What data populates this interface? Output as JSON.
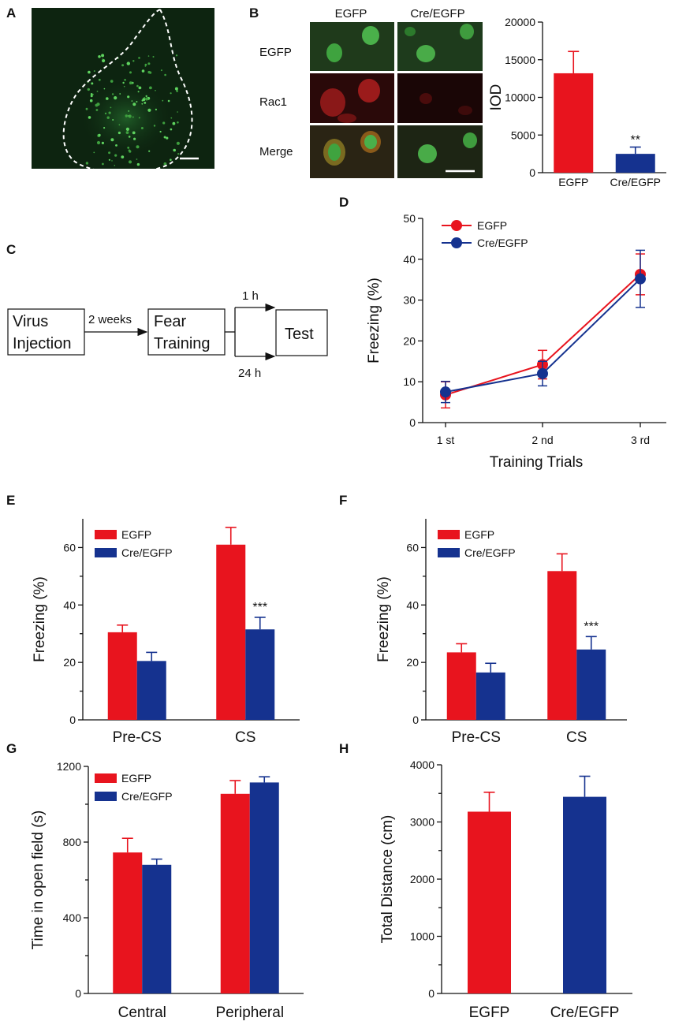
{
  "panel_letters": {
    "A": "A",
    "B": "B",
    "C": "C",
    "D": "D",
    "E": "E",
    "F": "F",
    "G": "G",
    "H": "H"
  },
  "colors": {
    "egfp": "#e8141e",
    "cre": "#15328f",
    "green_bg": "#0d2410"
  },
  "panel_b_micrographs": {
    "columns": [
      "EGFP",
      "Cre/EGFP"
    ],
    "rows": [
      "EGFP",
      "Rac1",
      "Merge"
    ]
  },
  "flowchart": {
    "box1": [
      "Virus",
      "Injection"
    ],
    "arrow1": "2 weeks",
    "box2": [
      "Fear",
      "Training"
    ],
    "branch_top": "1 h",
    "branch_bottom": "24 h",
    "box3": "Test"
  },
  "chart_data": [
    {
      "panel": "B",
      "type": "bar",
      "categories": [
        "EGFP",
        "Cre/EGFP"
      ],
      "values": [
        13200,
        2500
      ],
      "errors": [
        2900,
        900
      ],
      "colors": [
        "#e8141e",
        "#15328f"
      ],
      "ylabel": "IOD",
      "ylim": [
        0,
        20000
      ],
      "yticks": [
        0,
        5000,
        10000,
        15000,
        20000
      ],
      "significance": [
        {
          "category_index": 1,
          "text": "**"
        }
      ]
    },
    {
      "panel": "D",
      "type": "line",
      "x": [
        "1 st",
        "2 nd",
        "3 rd"
      ],
      "series": [
        {
          "name": "EGFP",
          "values": [
            6.8,
            14.2,
            36.3
          ],
          "errors": [
            3.2,
            3.5,
            5.0
          ],
          "color": "#e8141e"
        },
        {
          "name": "Cre/EGFP",
          "values": [
            7.5,
            12.0,
            35.2
          ],
          "errors": [
            2.6,
            3.0,
            7.0
          ],
          "color": "#15328f"
        }
      ],
      "xlabel": "Training Trials",
      "ylabel": "Freezing (%)",
      "ylim": [
        0,
        50
      ],
      "yticks": [
        0,
        10,
        20,
        30,
        40,
        50
      ]
    },
    {
      "panel": "E",
      "type": "bar",
      "categories": [
        "Pre-CS",
        "CS"
      ],
      "series": [
        {
          "name": "EGFP",
          "values": [
            30.5,
            61.0
          ],
          "errors": [
            2.5,
            6.0
          ],
          "color": "#e8141e"
        },
        {
          "name": "Cre/EGFP",
          "values": [
            20.5,
            31.5
          ],
          "errors": [
            3.0,
            4.2
          ],
          "color": "#15328f"
        }
      ],
      "ylabel": "Freezing (%)",
      "ylim": [
        0,
        70
      ],
      "yticks": [
        0,
        20,
        40,
        60
      ],
      "significance": [
        {
          "category_index": 1,
          "series_index": 1,
          "text": "***"
        }
      ]
    },
    {
      "panel": "F",
      "type": "bar",
      "categories": [
        "Pre-CS",
        "CS"
      ],
      "series": [
        {
          "name": "EGFP",
          "values": [
            23.5,
            51.8
          ],
          "errors": [
            3.0,
            6.0
          ],
          "color": "#e8141e"
        },
        {
          "name": "Cre/EGFP",
          "values": [
            16.5,
            24.5
          ],
          "errors": [
            3.2,
            4.5
          ],
          "color": "#15328f"
        }
      ],
      "ylabel": "Freezing (%)",
      "ylim": [
        0,
        70
      ],
      "yticks": [
        0,
        20,
        40,
        60
      ],
      "significance": [
        {
          "category_index": 1,
          "series_index": 1,
          "text": "***"
        }
      ]
    },
    {
      "panel": "G",
      "type": "bar",
      "categories": [
        "Central",
        "Peripheral"
      ],
      "series": [
        {
          "name": "EGFP",
          "values": [
            745,
            1055
          ],
          "errors": [
            75,
            70
          ],
          "color": "#e8141e"
        },
        {
          "name": "Cre/EGFP",
          "values": [
            680,
            1115
          ],
          "errors": [
            30,
            30
          ],
          "color": "#15328f"
        }
      ],
      "ylabel": "Time in open field (s)",
      "ylim": [
        0,
        1200
      ],
      "yticks": [
        0,
        400,
        800,
        1200
      ]
    },
    {
      "panel": "H",
      "type": "bar",
      "categories": [
        "EGFP",
        "Cre/EGFP"
      ],
      "values": [
        3180,
        3440
      ],
      "errors": [
        340,
        360
      ],
      "colors": [
        "#e8141e",
        "#15328f"
      ],
      "ylabel": "Total Distance (cm)",
      "ylim": [
        0,
        4000
      ],
      "yticks": [
        0,
        1000,
        2000,
        3000,
        4000
      ]
    }
  ]
}
